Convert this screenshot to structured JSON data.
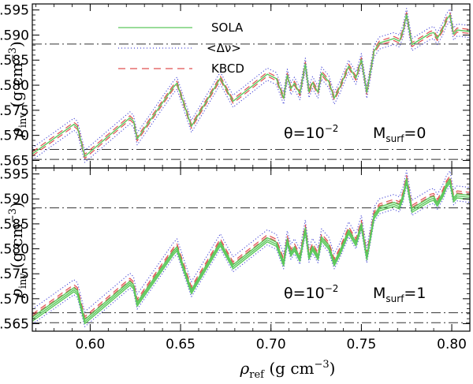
{
  "chart_data": {
    "type": "line",
    "shared_x": {
      "label_sym": "ρ",
      "label_sub": "ref",
      "label_unit": " (g cm",
      "label_exp": "−3",
      "label_close": ")",
      "xlim": [
        0.568,
        0.81
      ],
      "ticks": [
        0.6,
        0.65,
        0.7,
        0.75,
        0.8
      ],
      "tick_labels": [
        "0.60",
        "0.65",
        "0.70",
        "0.75",
        "0.80"
      ]
    },
    "legend": [
      {
        "name": "SOLA",
        "color": "#5cc85c",
        "dash": "solid"
      },
      {
        "name": "<Δν>",
        "color": "#4a4ad8",
        "dash": "dot"
      },
      {
        "name": "KBCD",
        "color": "#e05050",
        "dash": "dash"
      }
    ],
    "ref_lines": [
      0.5882,
      0.5672,
      0.5652
    ],
    "ref_line_color": "#333333",
    "panels": [
      {
        "y_label_sym": "ρ",
        "y_label_sub": "inv",
        "y_label_unit": "(g cm",
        "y_label_exp": "−3",
        "y_label_close": ")",
        "ylim": [
          0.5635,
          0.5962
        ],
        "ticks": [
          0.565,
          0.57,
          0.575,
          0.58,
          0.585,
          0.59,
          0.595
        ],
        "tick_labels": [
          "0.565",
          "0.570",
          "0.575",
          "0.580",
          "0.585",
          "0.590",
          "0.595"
        ],
        "annotation": {
          "theta": "θ=10",
          "theta_exp": "−2",
          "msurf": "M",
          "msurf_sub": "surf",
          "msurf_val": "=0"
        },
        "offsets": {
          "SOLA": [
            0.0
          ],
          "KBCD": [
            -0.0004,
            0.0004
          ],
          "DELTA": [
            -0.0012,
            0.0012
          ]
        }
      },
      {
        "y_label_sym": "ρ",
        "y_label_sub": "inv",
        "y_label_unit": "(g cm",
        "y_label_exp": "−3",
        "y_label_close": ")",
        "ylim": [
          0.5635,
          0.5962
        ],
        "ticks": [
          0.565,
          0.57,
          0.575,
          0.58,
          0.585,
          0.59,
          0.595
        ],
        "tick_labels": [
          "0.565",
          "0.570",
          "0.575",
          "0.580",
          "0.585",
          "0.590",
          "0.595"
        ],
        "annotation": {
          "theta": "θ=10",
          "theta_exp": "−2",
          "msurf": "M",
          "msurf_sub": "surf",
          "msurf_val": "=1"
        },
        "offsets": {
          "SOLA": [
            -0.0008,
            -0.0004,
            0.0
          ],
          "KBCD": [
            0.0002,
            0.0006
          ],
          "DELTA": [
            -0.0014,
            0.0016
          ]
        }
      }
    ],
    "base_curve": {
      "x": [
        0.568,
        0.591,
        0.593,
        0.597,
        0.622,
        0.624,
        0.626,
        0.646,
        0.648,
        0.656,
        0.672,
        0.675,
        0.679,
        0.698,
        0.703,
        0.707,
        0.709,
        0.711,
        0.713,
        0.716,
        0.719,
        0.721,
        0.723,
        0.726,
        0.728,
        0.732,
        0.735,
        0.738,
        0.743,
        0.747,
        0.75,
        0.753,
        0.757,
        0.76,
        0.768,
        0.771,
        0.773,
        0.775,
        0.778,
        0.788,
        0.79,
        0.792,
        0.795,
        0.797,
        0.799,
        0.801,
        0.803,
        0.81
      ],
      "y": [
        0.5663,
        0.5722,
        0.5716,
        0.5658,
        0.5735,
        0.5728,
        0.5693,
        0.5796,
        0.5804,
        0.5718,
        0.5814,
        0.5794,
        0.5768,
        0.5822,
        0.5813,
        0.5774,
        0.582,
        0.5793,
        0.5804,
        0.5783,
        0.5842,
        0.5787,
        0.5805,
        0.5786,
        0.5824,
        0.5807,
        0.5774,
        0.5795,
        0.5838,
        0.5814,
        0.5851,
        0.5786,
        0.5868,
        0.5884,
        0.5893,
        0.5888,
        0.5907,
        0.5941,
        0.5881,
        0.5903,
        0.5905,
        0.5893,
        0.5912,
        0.593,
        0.594,
        0.5902,
        0.591,
        0.5907
      ]
    }
  }
}
